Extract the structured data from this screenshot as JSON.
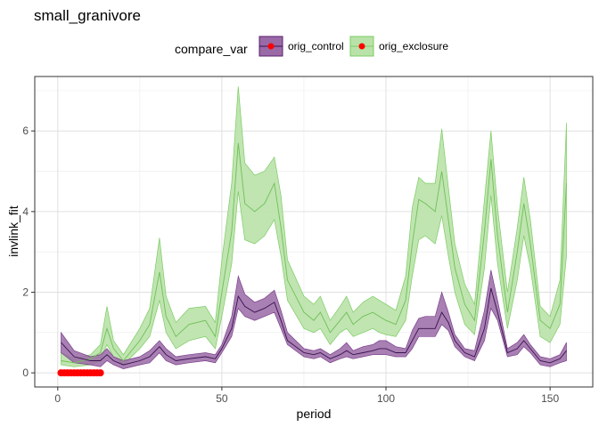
{
  "chart_data": {
    "type": "line",
    "title": "small_granivore",
    "xlabel": "period",
    "ylabel": "invlink_fit",
    "xlim": [
      -7,
      163
    ],
    "ylim": [
      -0.35,
      7.35
    ],
    "xticks": [
      0,
      50,
      100,
      150
    ],
    "yticks": [
      0,
      2,
      4,
      6
    ],
    "grid": true,
    "legend": {
      "title": "compare_var",
      "position": "top"
    },
    "series": [
      {
        "name": "orig_control",
        "color": "#7b3f8c",
        "fill": "#9a6aa6",
        "x": [
          1,
          5,
          10,
          13,
          15,
          17,
          20,
          25,
          28,
          31,
          33,
          36,
          40,
          45,
          48,
          50,
          53,
          55,
          57,
          60,
          63,
          66,
          68,
          70,
          75,
          78,
          80,
          83,
          86,
          88,
          90,
          93,
          96,
          98,
          100,
          103,
          106,
          108,
          110,
          112,
          115,
          117,
          119,
          121,
          124,
          127,
          130,
          132,
          134,
          137,
          140,
          142,
          144,
          147,
          150,
          153,
          155
        ],
        "y": [
          0.75,
          0.4,
          0.3,
          0.3,
          0.45,
          0.3,
          0.2,
          0.3,
          0.4,
          0.65,
          0.45,
          0.3,
          0.35,
          0.4,
          0.35,
          0.6,
          1.1,
          1.9,
          1.65,
          1.5,
          1.6,
          1.75,
          1.3,
          0.8,
          0.5,
          0.45,
          0.5,
          0.35,
          0.45,
          0.55,
          0.45,
          0.5,
          0.55,
          0.6,
          0.6,
          0.5,
          0.5,
          0.8,
          1.1,
          1.1,
          1.1,
          1.5,
          1.25,
          0.8,
          0.5,
          0.4,
          1.1,
          2.1,
          1.5,
          0.5,
          0.6,
          0.8,
          0.6,
          0.3,
          0.25,
          0.35,
          0.55
        ],
        "lower": [
          0.5,
          0.25,
          0.2,
          0.15,
          0.3,
          0.2,
          0.1,
          0.2,
          0.25,
          0.5,
          0.3,
          0.2,
          0.25,
          0.3,
          0.25,
          0.5,
          0.9,
          1.6,
          1.4,
          1.3,
          1.4,
          1.5,
          1.1,
          0.7,
          0.4,
          0.35,
          0.4,
          0.25,
          0.35,
          0.4,
          0.35,
          0.4,
          0.45,
          0.45,
          0.45,
          0.4,
          0.4,
          0.6,
          0.9,
          0.9,
          0.9,
          1.2,
          1.05,
          0.65,
          0.4,
          0.3,
          0.8,
          1.6,
          1.3,
          0.4,
          0.45,
          0.65,
          0.5,
          0.2,
          0.15,
          0.25,
          0.3
        ],
        "upper": [
          1.0,
          0.55,
          0.4,
          0.45,
          0.6,
          0.4,
          0.3,
          0.4,
          0.55,
          0.8,
          0.6,
          0.4,
          0.45,
          0.5,
          0.45,
          0.7,
          1.4,
          2.4,
          1.95,
          1.75,
          1.85,
          2.05,
          1.55,
          1.0,
          0.6,
          0.55,
          0.6,
          0.45,
          0.6,
          0.75,
          0.55,
          0.65,
          0.7,
          0.8,
          0.8,
          0.65,
          0.6,
          1.05,
          1.35,
          1.4,
          1.4,
          2.0,
          1.5,
          0.95,
          0.6,
          0.55,
          1.55,
          2.55,
          1.8,
          0.6,
          0.75,
          0.95,
          0.7,
          0.4,
          0.35,
          0.45,
          0.75
        ]
      },
      {
        "name": "orig_exclosure",
        "color": "#7ccc63",
        "fill": "#b9e2a8",
        "x": [
          1,
          5,
          10,
          13,
          15,
          17,
          20,
          25,
          28,
          31,
          33,
          36,
          40,
          45,
          48,
          50,
          53,
          55,
          57,
          60,
          63,
          66,
          68,
          70,
          75,
          78,
          80,
          83,
          86,
          88,
          90,
          93,
          96,
          98,
          100,
          103,
          106,
          108,
          110,
          112,
          115,
          117,
          119,
          121,
          124,
          127,
          130,
          132,
          134,
          137,
          140,
          142,
          144,
          147,
          150,
          153,
          155
        ],
        "y": [
          0.3,
          0.25,
          0.35,
          0.5,
          1.1,
          0.6,
          0.3,
          0.8,
          1.2,
          2.5,
          1.4,
          0.9,
          1.2,
          1.3,
          0.9,
          2.0,
          3.5,
          5.7,
          4.2,
          4.0,
          4.2,
          4.7,
          3.6,
          2.3,
          1.5,
          1.3,
          1.5,
          1.0,
          1.3,
          1.5,
          1.2,
          1.4,
          1.5,
          1.4,
          1.3,
          1.2,
          1.8,
          3.2,
          4.3,
          4.2,
          4.0,
          5.0,
          3.8,
          2.6,
          1.7,
          1.3,
          3.5,
          5.3,
          3.4,
          1.5,
          3.0,
          4.2,
          3.2,
          1.3,
          1.1,
          1.7,
          4.7
        ],
        "lower": [
          0.2,
          0.15,
          0.2,
          0.3,
          0.7,
          0.4,
          0.2,
          0.6,
          0.9,
          1.8,
          1.0,
          0.6,
          0.8,
          0.9,
          0.6,
          1.4,
          2.7,
          4.5,
          3.3,
          3.2,
          3.4,
          3.8,
          2.9,
          1.8,
          1.1,
          1.0,
          1.1,
          0.7,
          1.0,
          1.1,
          0.9,
          1.0,
          1.1,
          1.0,
          0.95,
          0.9,
          1.3,
          2.4,
          3.3,
          3.4,
          3.2,
          3.9,
          2.9,
          2.0,
          1.2,
          0.95,
          2.6,
          4.4,
          2.7,
          1.1,
          2.3,
          3.4,
          2.6,
          0.9,
          0.75,
          1.2,
          2.9
        ],
        "upper": [
          0.5,
          0.35,
          0.45,
          0.7,
          1.65,
          0.8,
          0.45,
          1.1,
          1.6,
          3.35,
          1.9,
          1.25,
          1.6,
          1.65,
          1.25,
          2.8,
          4.7,
          7.1,
          5.2,
          4.9,
          5.0,
          5.35,
          4.4,
          2.8,
          1.9,
          1.7,
          1.9,
          1.3,
          1.65,
          1.9,
          1.5,
          1.75,
          1.9,
          1.8,
          1.7,
          1.55,
          2.4,
          4.1,
          4.85,
          4.7,
          4.7,
          6.05,
          4.6,
          3.2,
          2.2,
          1.7,
          4.3,
          6.0,
          4.1,
          2.0,
          3.6,
          4.85,
          3.8,
          1.65,
          1.4,
          2.3,
          6.2
        ]
      }
    ],
    "highlight": {
      "color": "#ff0000",
      "x": [
        1,
        2,
        3,
        4,
        5,
        6,
        7,
        8,
        9,
        10,
        11,
        12,
        13
      ],
      "y": [
        0,
        0,
        0,
        0,
        0,
        0,
        0,
        0,
        0,
        0,
        0,
        0,
        0
      ]
    }
  }
}
